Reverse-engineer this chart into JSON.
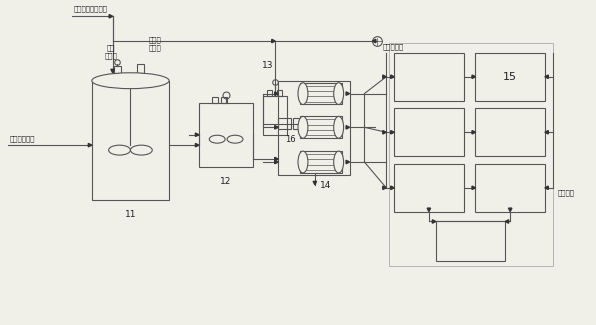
{
  "bg_color": "#f0efe8",
  "line_color": "#555555",
  "text_color": "#222222",
  "labels": {
    "top_left": "来自分离液儲装池",
    "acid_feed": "酸液\n加料口",
    "al_feed": "铝矾土\n加料口",
    "water_net": "自来水管网",
    "from_boiler": "来自余热锅炉",
    "item11": "11",
    "item12": "12",
    "item13": "13",
    "item14": "14",
    "item15": "15",
    "item16": "16",
    "to_filter": "去调质滤"
  }
}
